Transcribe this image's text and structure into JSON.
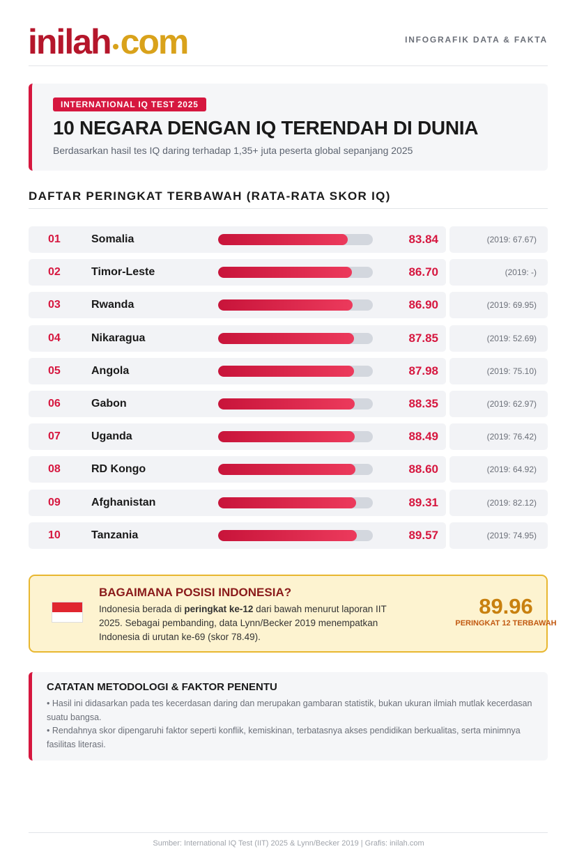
{
  "logo": {
    "part1": "inilah",
    "part2": "com"
  },
  "header_tag": "INFOGRAFIK DATA & FAKTA",
  "headline": {
    "badge": "INTERNATIONAL IQ TEST 2025",
    "title": "10 NEGARA DENGAN IQ TERENDAH DI DUNIA",
    "subtitle": "Berdasarkan hasil tes IQ daring terhadap 1,35+ juta peserta global sepanjang 2025"
  },
  "ranking": {
    "title": "DAFTAR PERINGKAT TERBAWAH (RATA-RATA SKOR IQ)",
    "xlim": [
      0,
      100
    ],
    "ranks": [
      "01",
      "02",
      "03",
      "04",
      "05",
      "06",
      "07",
      "08",
      "09",
      "10"
    ],
    "categories": [
      "Somalia",
      "Timor-Leste",
      "Rwanda",
      "Nikaragua",
      "Angola",
      "Gabon",
      "Uganda",
      "RD Kongo",
      "Afghanistan",
      "Tanzania"
    ],
    "values": [
      83.84,
      86.7,
      86.9,
      87.85,
      87.98,
      88.35,
      88.49,
      88.6,
      89.31,
      89.57
    ],
    "value_labels": [
      "83.84",
      "86.70",
      "86.90",
      "87.85",
      "87.98",
      "88.35",
      "88.49",
      "88.60",
      "89.31",
      "89.57"
    ],
    "previous": [
      "(2019: 67.67)",
      "(2019: -)",
      "(2019: 69.95)",
      "(2019: 52.69)",
      "(2019: 75.10)",
      "(2019: 62.97)",
      "(2019: 76.42)",
      "(2019: 64.92)",
      "(2019: 82.12)",
      "(2019: 74.95)"
    ]
  },
  "indonesia": {
    "title": "BAGAIMANA POSISI INDONESIA?",
    "text_before": "Indonesia berada di ",
    "text_bold": "peringkat ke-12",
    "text_after": " dari bawah menurut laporan IIT 2025. Sebagai pembanding, data Lynn/Becker 2019 menempatkan Indonesia di urutan ke-69 (skor 78.49).",
    "score": "89.96",
    "score_caption": "PERINGKAT 12 TERBAWAH"
  },
  "notes": {
    "title": "CATATAN METODOLOGI & FAKTOR PENENTU",
    "items": [
      "Hasil ini didasarkan pada tes kecerdasan daring dan merupakan gambaran statistik, bukan ukuran ilmiah mutlak kecerdasan suatu bangsa.",
      "Rendahnya skor dipengaruhi faktor seperti konflik, kemiskinan, terbatasnya akses pendidikan berkualitas, serta minimnya fasilitas literasi."
    ]
  },
  "footer": "Sumber: International IQ Test (IIT) 2025 & Lynn/Becker 2019 | Grafis: inilah.com"
}
